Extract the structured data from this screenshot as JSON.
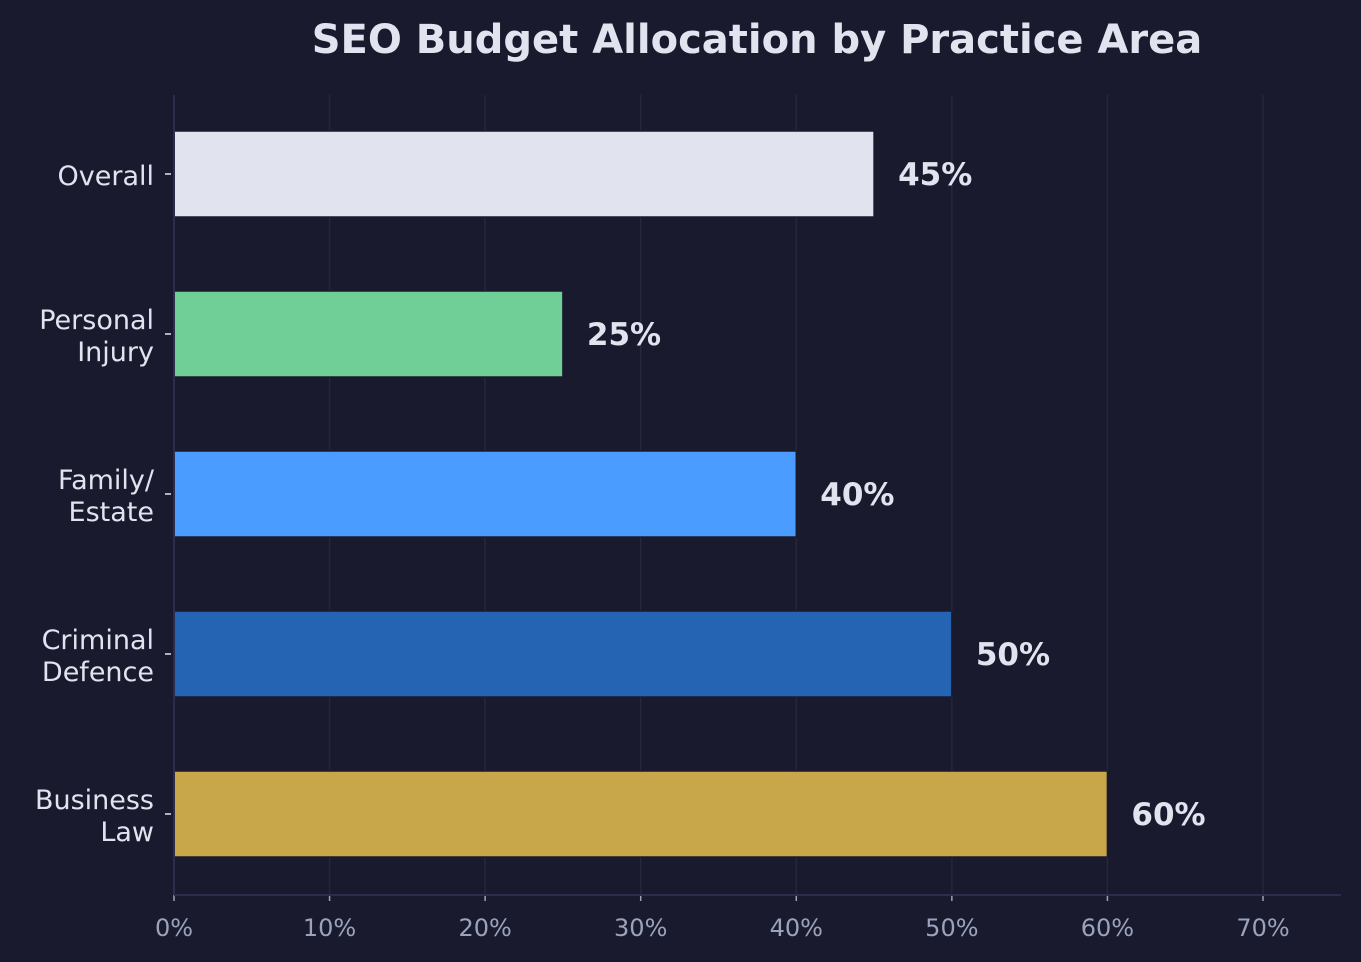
{
  "chart_data": {
    "type": "bar",
    "orientation": "horizontal",
    "title": "SEO Budget Allocation by Practice Area",
    "xlabel": "",
    "ylabel": "",
    "categories": [
      [
        "Overall"
      ],
      [
        "Personal",
        "Injury"
      ],
      [
        "Family/",
        "Estate"
      ],
      [
        "Criminal",
        "Defence"
      ],
      [
        "Business",
        "Law"
      ]
    ],
    "values": [
      45,
      25,
      40,
      50,
      60
    ],
    "value_labels": [
      "45%",
      "25%",
      "40%",
      "50%",
      "60%"
    ],
    "colors": [
      "#e1e4ef",
      "#6fcf97",
      "#4a9dff",
      "#2563b3",
      "#c8a64a"
    ],
    "xlim": [
      0,
      75
    ],
    "xticks": [
      0,
      10,
      20,
      30,
      40,
      50,
      60,
      70
    ],
    "xtick_labels": [
      "0%",
      "10%",
      "20%",
      "30%",
      "40%",
      "50%",
      "60%",
      "70%"
    ],
    "grid": "vertical",
    "background": "#1a1a2e"
  }
}
